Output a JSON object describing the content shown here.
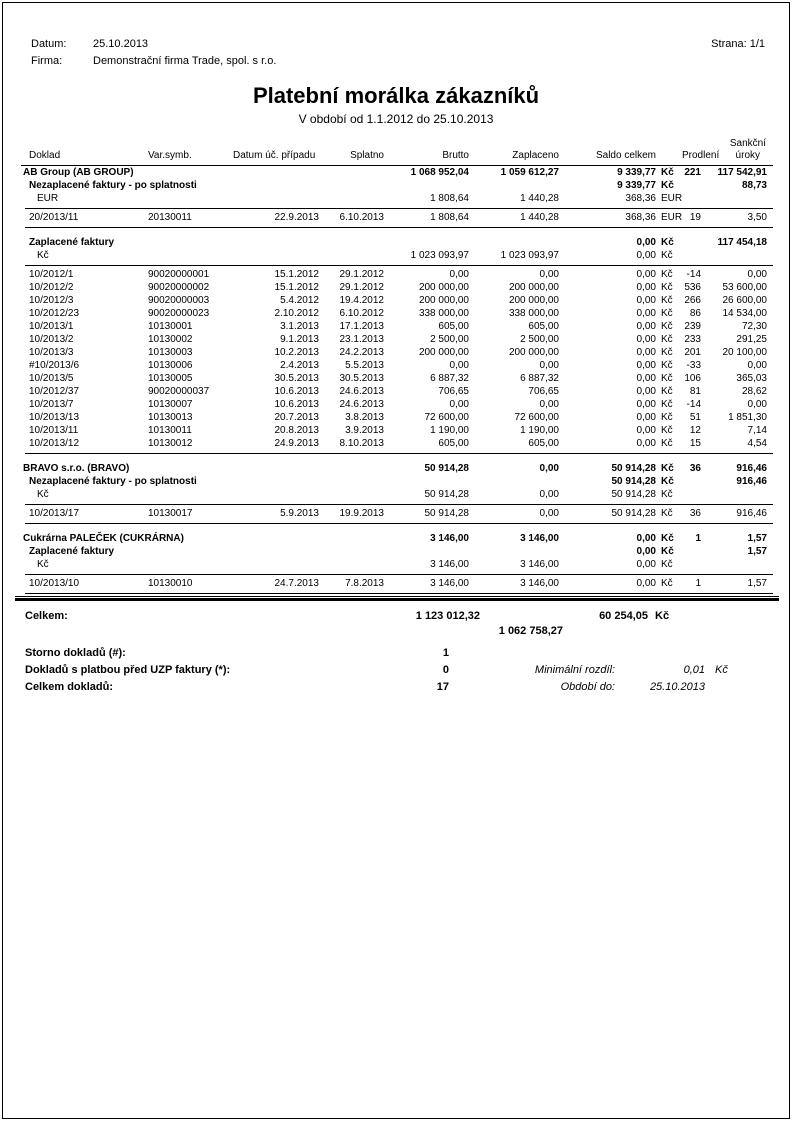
{
  "meta": {
    "datum_label": "Datum:",
    "datum_value": "25.10.2013",
    "firma_label": "Firma:",
    "firma_value": "Demonstrační firma Trade, spol. s r.o.",
    "strana_label": "Strana:",
    "strana_value": "1/1"
  },
  "title": "Platební morálka zákazníků",
  "subtitle": "V období od 1.1.2012 do 25.10.2013",
  "colors": {
    "text": "#000000",
    "background": "#ffffff",
    "border": "#000000"
  },
  "table": {
    "superheader": "Sankční",
    "headers": [
      "Doklad",
      "Var.symb.",
      "Datum úč. případu",
      "Splatno",
      "Brutto",
      "Zaplaceno",
      "Saldo celkem",
      "",
      "Prodlení",
      "úroky"
    ],
    "rows": [
      {
        "type": "customer",
        "cells": [
          "AB Group (AB GROUP)",
          "",
          "",
          "",
          "1 068 952,04",
          "1 059 612,27",
          "9 339,77",
          "Kč",
          "221",
          "117 542,91"
        ]
      },
      {
        "type": "sub",
        "cells": [
          "Nezaplacené faktury - po splatnosti",
          "",
          "",
          "",
          "",
          "",
          "9 339,77",
          "Kč",
          "",
          "88,73"
        ]
      },
      {
        "type": "cur",
        "cells": [
          "EUR",
          "",
          "",
          "",
          "1 808,64",
          "1 440,28",
          "368,36",
          "EUR",
          "",
          ""
        ]
      },
      {
        "type": "rule"
      },
      {
        "type": "detail",
        "cells": [
          "20/2013/11",
          "20130011",
          "22.9.2013",
          "6.10.2013",
          "1 808,64",
          "1 440,28",
          "368,36",
          "EUR",
          "19",
          "3,50"
        ]
      },
      {
        "type": "rule"
      },
      {
        "type": "gap"
      },
      {
        "type": "sub",
        "cells": [
          "Zaplacené faktury",
          "",
          "",
          "",
          "",
          "",
          "0,00",
          "Kč",
          "",
          "117 454,18"
        ]
      },
      {
        "type": "cur",
        "cells": [
          "Kč",
          "",
          "",
          "",
          "1 023 093,97",
          "1 023 093,97",
          "0,00",
          "Kč",
          "",
          ""
        ]
      },
      {
        "type": "rule"
      },
      {
        "type": "detail",
        "cells": [
          "10/2012/1",
          "90020000001",
          "15.1.2012",
          "29.1.2012",
          "0,00",
          "0,00",
          "0,00",
          "Kč",
          "-14",
          "0,00"
        ]
      },
      {
        "type": "detail",
        "cells": [
          "10/2012/2",
          "90020000002",
          "15.1.2012",
          "29.1.2012",
          "200 000,00",
          "200 000,00",
          "0,00",
          "Kč",
          "536",
          "53 600,00"
        ]
      },
      {
        "type": "detail",
        "cells": [
          "10/2012/3",
          "90020000003",
          "5.4.2012",
          "19.4.2012",
          "200 000,00",
          "200 000,00",
          "0,00",
          "Kč",
          "266",
          "26 600,00"
        ]
      },
      {
        "type": "detail",
        "cells": [
          "10/2012/23",
          "90020000023",
          "2.10.2012",
          "6.10.2012",
          "338 000,00",
          "338 000,00",
          "0,00",
          "Kč",
          "86",
          "14 534,00"
        ]
      },
      {
        "type": "detail",
        "cells": [
          "10/2013/1",
          "10130001",
          "3.1.2013",
          "17.1.2013",
          "605,00",
          "605,00",
          "0,00",
          "Kč",
          "239",
          "72,30"
        ]
      },
      {
        "type": "detail",
        "cells": [
          "10/2013/2",
          "10130002",
          "9.1.2013",
          "23.1.2013",
          "2 500,00",
          "2 500,00",
          "0,00",
          "Kč",
          "233",
          "291,25"
        ]
      },
      {
        "type": "detail",
        "cells": [
          "10/2013/3",
          "10130003",
          "10.2.2013",
          "24.2.2013",
          "200 000,00",
          "200 000,00",
          "0,00",
          "Kč",
          "201",
          "20 100,00"
        ]
      },
      {
        "type": "detail",
        "cells": [
          "#10/2013/6",
          "10130006",
          "2.4.2013",
          "5.5.2013",
          "0,00",
          "0,00",
          "0,00",
          "Kč",
          "-33",
          "0,00"
        ]
      },
      {
        "type": "detail",
        "cells": [
          "10/2013/5",
          "10130005",
          "30.5.2013",
          "30.5.2013",
          "6 887,32",
          "6 887,32",
          "0,00",
          "Kč",
          "106",
          "365,03"
        ]
      },
      {
        "type": "detail",
        "cells": [
          "10/2012/37",
          "90020000037",
          "10.6.2013",
          "24.6.2013",
          "706,65",
          "706,65",
          "0,00",
          "Kč",
          "81",
          "28,62"
        ]
      },
      {
        "type": "detail",
        "cells": [
          "10/2013/7",
          "10130007",
          "10.6.2013",
          "24.6.2013",
          "0,00",
          "0,00",
          "0,00",
          "Kč",
          "-14",
          "0,00"
        ]
      },
      {
        "type": "detail",
        "cells": [
          "10/2013/13",
          "10130013",
          "20.7.2013",
          "3.8.2013",
          "72 600,00",
          "72 600,00",
          "0,00",
          "Kč",
          "51",
          "1 851,30"
        ]
      },
      {
        "type": "detail",
        "cells": [
          "10/2013/11",
          "10130011",
          "20.8.2013",
          "3.9.2013",
          "1 190,00",
          "1 190,00",
          "0,00",
          "Kč",
          "12",
          "7,14"
        ]
      },
      {
        "type": "detail",
        "cells": [
          "10/2013/12",
          "10130012",
          "24.9.2013",
          "8.10.2013",
          "605,00",
          "605,00",
          "0,00",
          "Kč",
          "15",
          "4,54"
        ]
      },
      {
        "type": "rule"
      },
      {
        "type": "gap"
      },
      {
        "type": "customer",
        "cells": [
          "BRAVO s.r.o. (BRAVO)",
          "",
          "",
          "",
          "50 914,28",
          "0,00",
          "50 914,28",
          "Kč",
          "36",
          "916,46"
        ]
      },
      {
        "type": "sub",
        "cells": [
          "Nezaplacené faktury - po splatnosti",
          "",
          "",
          "",
          "",
          "",
          "50 914,28",
          "Kč",
          "",
          "916,46"
        ]
      },
      {
        "type": "cur",
        "cells": [
          "Kč",
          "",
          "",
          "",
          "50 914,28",
          "0,00",
          "50 914,28",
          "Kč",
          "",
          ""
        ]
      },
      {
        "type": "rule"
      },
      {
        "type": "detail",
        "cells": [
          "10/2013/17",
          "10130017",
          "5.9.2013",
          "19.9.2013",
          "50 914,28",
          "0,00",
          "50 914,28",
          "Kč",
          "36",
          "916,46"
        ]
      },
      {
        "type": "rule"
      },
      {
        "type": "gap"
      },
      {
        "type": "customer",
        "cells": [
          "Cukrárna PALEČEK (CUKRÁRNA)",
          "",
          "",
          "",
          "3 146,00",
          "3 146,00",
          "0,00",
          "Kč",
          "1",
          "1,57"
        ]
      },
      {
        "type": "sub",
        "cells": [
          "Zaplacené faktury",
          "",
          "",
          "",
          "",
          "",
          "0,00",
          "Kč",
          "",
          "1,57"
        ]
      },
      {
        "type": "cur",
        "cells": [
          "Kč",
          "",
          "",
          "",
          "3 146,00",
          "3 146,00",
          "0,00",
          "Kč",
          "",
          ""
        ]
      },
      {
        "type": "rule"
      },
      {
        "type": "detail",
        "cells": [
          "10/2013/10",
          "10130010",
          "24.7.2013",
          "7.8.2013",
          "3 146,00",
          "3 146,00",
          "0,00",
          "Kč",
          "1",
          "1,57"
        ]
      },
      {
        "type": "rule"
      },
      {
        "type": "end"
      }
    ]
  },
  "totals": {
    "celkem_label": "Celkem:",
    "celkem_brutto": "1 123 012,32",
    "celkem_zaplaceno": "1 062 758,27",
    "celkem_saldo": "60 254,05",
    "celkem_saldo_unit": "Kč",
    "storno_label": "Storno dokladů (#):",
    "storno_value": "1",
    "uzp_label": "Dokladů s platbou před UZP faktury (*):",
    "uzp_value": "0",
    "min_rozdil_label": "Minimální rozdíl:",
    "min_rozdil_value": "0,01",
    "min_rozdil_unit": "Kč",
    "celkem_dokladu_label": "Celkem dokladů:",
    "celkem_dokladu_value": "17",
    "obdobi_label": "Období do:",
    "obdobi_value": "25.10.2013"
  }
}
